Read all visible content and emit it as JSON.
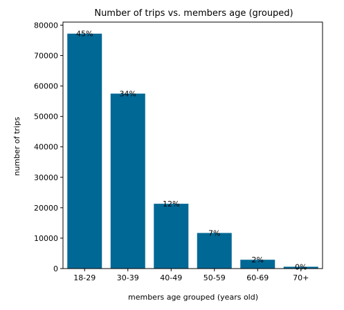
{
  "chart_data": {
    "type": "bar",
    "title": "Number of trips vs. members age (grouped)",
    "xlabel": "members age grouped (years old)",
    "ylabel": "number of trips",
    "categories": [
      "18-29",
      "30-39",
      "40-49",
      "50-59",
      "60-69",
      "70+"
    ],
    "values": [
      77200,
      57500,
      21300,
      11700,
      2900,
      600
    ],
    "data_labels": [
      "45%",
      "34%",
      "12%",
      "7%",
      "2%",
      "0%"
    ],
    "ylim": [
      0,
      81000
    ],
    "yticks": [
      0,
      10000,
      20000,
      30000,
      40000,
      50000,
      60000,
      70000,
      80000
    ],
    "ytick_labels": [
      "0",
      "10000",
      "20000",
      "30000",
      "40000",
      "50000",
      "60000",
      "70000",
      "80000"
    ],
    "grid": false,
    "bar_color": "#006895"
  }
}
